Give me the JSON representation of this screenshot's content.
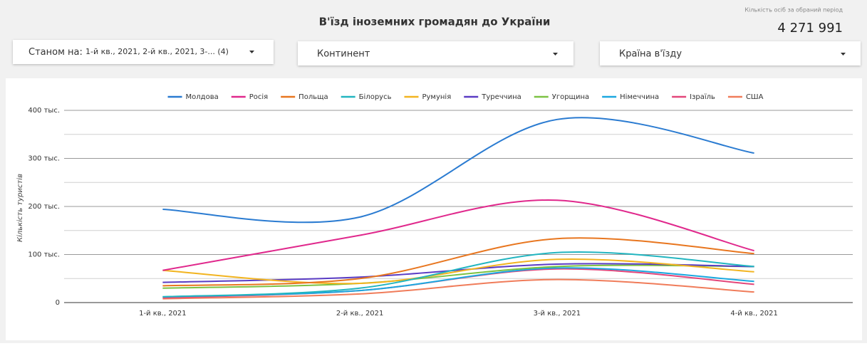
{
  "header": {
    "title": "В'їзд іноземних громадян до України",
    "kpi_label": "Кількість осіб за обраний період",
    "kpi_value": "4 271 991"
  },
  "filters": [
    {
      "label": "Станом на:",
      "value": "1-й кв., 2021, 2-й кв., 2021, 3-... (4)"
    },
    {
      "label": "Континент"
    },
    {
      "label": "Країна в'їзду"
    }
  ],
  "chart_data": {
    "type": "line",
    "y_label": "Кількість туристів",
    "categories": [
      "1-й кв., 2021",
      "2-й кв., 2021",
      "3-й кв., 2021",
      "4-й кв., 2021"
    ],
    "ylim": [
      0,
      400000
    ],
    "yticks": [
      0,
      {
        "value": 100000,
        "label": "100 тыс."
      },
      {
        "value": 200000,
        "label": "200 тыс."
      },
      {
        "value": 300000,
        "label": "300 тыс."
      },
      {
        "value": 400000,
        "label": "400 тыс."
      }
    ],
    "minor_yticks": [
      50000,
      150000,
      250000,
      350000
    ],
    "grid": true,
    "legend": "top",
    "series": [
      {
        "name": "Молдова",
        "color": "#2a7bd1",
        "values": [
          194000,
          178000,
          381000,
          311000
        ]
      },
      {
        "name": "Росія",
        "color": "#e0288c",
        "values": [
          67000,
          140000,
          213000,
          108000
        ]
      },
      {
        "name": "Польща",
        "color": "#e8761f",
        "values": [
          35000,
          50000,
          133000,
          102000
        ]
      },
      {
        "name": "Білорусь",
        "color": "#22b5c0",
        "values": [
          12000,
          30000,
          104000,
          75000
        ]
      },
      {
        "name": "Румунія",
        "color": "#f2b420",
        "values": [
          67000,
          40000,
          90000,
          64000
        ]
      },
      {
        "name": "Туреччина",
        "color": "#5a3cc4",
        "values": [
          42000,
          53000,
          80000,
          75000
        ]
      },
      {
        "name": "Угорщина",
        "color": "#7cc243",
        "values": [
          30000,
          40000,
          75000,
          75000
        ]
      },
      {
        "name": "Німеччина",
        "color": "#1ba8e0",
        "values": [
          12000,
          25000,
          72000,
          44000
        ]
      },
      {
        "name": "Ізраїль",
        "color": "#e3467a",
        "values": [
          10000,
          25000,
          70000,
          38000
        ]
      },
      {
        "name": "США",
        "color": "#f07c5a",
        "values": [
          8000,
          18000,
          48000,
          22000
        ]
      }
    ]
  }
}
